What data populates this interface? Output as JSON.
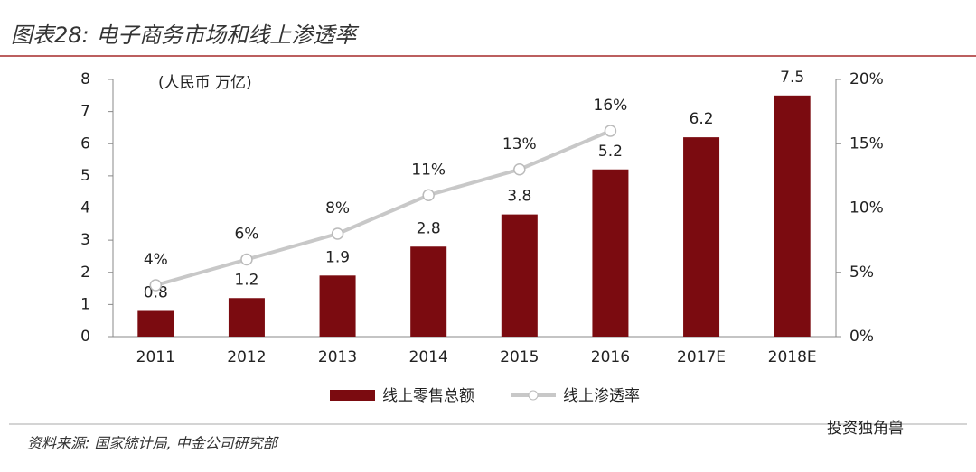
{
  "chart_data": {
    "type": "bar",
    "title": "图表28: 电子商务市场和线上渗透率",
    "unit_label": "(人民币 万亿)",
    "source": "资料来源: 国家統计局, 中金公司研究部",
    "watermark": "投资独角兽",
    "categories": [
      "2011",
      "2012",
      "2013",
      "2014",
      "2015",
      "2016",
      "2017E",
      "2018E"
    ],
    "series": [
      {
        "name": "线上零售总额",
        "color": "#7b0b10",
        "values": [
          0.8,
          1.2,
          1.9,
          2.8,
          3.8,
          5.2,
          6.2,
          7.5
        ]
      },
      {
        "name": "线上渗透率",
        "color": "#c8c8c8",
        "type": "line",
        "axis": "y2",
        "values": [
          4,
          6,
          8,
          11,
          13,
          16,
          null,
          null
        ],
        "value_labels": [
          "4%",
          "6%",
          "8%",
          "11%",
          "13%",
          "16%",
          null,
          null
        ]
      }
    ],
    "ylim": [
      0,
      8
    ],
    "yticks": [
      0,
      1,
      2,
      3,
      4,
      5,
      6,
      7,
      8
    ],
    "y2lim": [
      0,
      20
    ],
    "y2ticks": [
      {
        "value": 0,
        "label": "0%"
      },
      {
        "value": 5,
        "label": "5%"
      },
      {
        "value": 10,
        "label": "10%"
      },
      {
        "value": 15,
        "label": "15%"
      },
      {
        "value": 20,
        "label": "20%"
      }
    ]
  }
}
